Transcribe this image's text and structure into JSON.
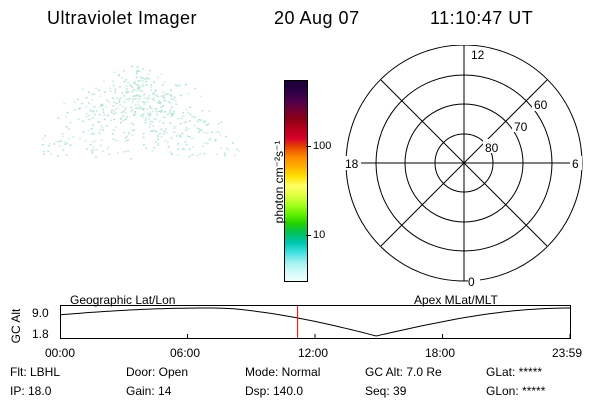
{
  "header": {
    "title": "Ultraviolet Imager",
    "date": "20 Aug 07",
    "time": "11:10:47 UT"
  },
  "colorbar": {
    "unit_label": "photon cm⁻²s⁻¹",
    "tick_100": "100",
    "tick_10": "10",
    "colors_top_to_bottom": [
      "#1a0033",
      "#2a0044",
      "#4b004e",
      "#6f0032",
      "#8b0018",
      "#b5001a",
      "#d6002a",
      "#e64a00",
      "#ff8c00",
      "#ffb000",
      "#ffe000",
      "#ffff66",
      "#e0ff40",
      "#a8ff20",
      "#60f000",
      "#20d000",
      "#00c060",
      "#00c8b0",
      "#40e0e0",
      "#a0f0f0",
      "#d0fafa",
      "#f0ffff"
    ]
  },
  "polar_plot": {
    "label_top": "12",
    "label_bottom": "0",
    "label_left": "18",
    "label_right": "6",
    "ring_60": "60",
    "ring_70": "70",
    "ring_80": "80"
  },
  "timeline": {
    "left_title": "Geographic Lat/Lon",
    "right_title": "Apex MLat/MLT",
    "ylabel": "GC Alt",
    "ytick_top": "9.0",
    "ytick_bottom": "1.8",
    "xticks": [
      "00:00",
      "06:00",
      "12:00",
      "18:00",
      "23:59"
    ],
    "current_fraction": 0.4659
  },
  "info": {
    "flt": "Flt: LBHL",
    "ip": "IP: 18.0",
    "door": "Door: Open",
    "gain": "Gain: 14",
    "mode": "Mode: Normal",
    "dsp": "Dsp:  140.0",
    "gcalt": "GC Alt: 7.0 Re",
    "seq": "Seq: 39",
    "glat": "GLat: *****",
    "glon": "GLon: *****"
  }
}
